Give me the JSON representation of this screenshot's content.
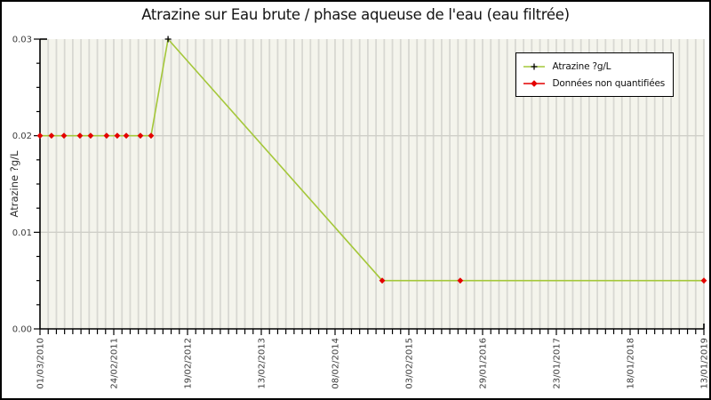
{
  "title": "Atrazine sur Eau brute / phase aqueuse de l'eau (eau filtrée)",
  "legend": {
    "items": [
      {
        "label": "Atrazine ?g/L",
        "marker": "black-plus-on-green-line"
      },
      {
        "label": "Données non quantifiées",
        "marker": "red-diamond-on-red-line"
      }
    ]
  },
  "colors": {
    "plot_bg": "#f4f4ec",
    "grid_vertical": "#d8d8d2",
    "grid_horizontal": "#cfcfc8",
    "axis": "#000000",
    "tick_label": "#3c3c3c",
    "series_line": "#a4c739",
    "non_quantified_marker": "#e40000",
    "quantified_marker": "#000000"
  },
  "chart_data": {
    "type": "line",
    "title": "Atrazine sur Eau brute / phase aqueuse de l'eau (eau filtrée)",
    "xlabel": "",
    "ylabel": "Atrazine ?g/L",
    "ylim": [
      0,
      0.03
    ],
    "y_major_step": 0.01,
    "y_minor_step": 0.0025,
    "y_tick_labels": [
      "0.00",
      "0.01",
      "0.02",
      "0.03"
    ],
    "x_tick_labels": [
      "01/03/2010",
      "24/02/2011",
      "19/02/2012",
      "13/02/2013",
      "08/02/2014",
      "03/02/2015",
      "29/01/2016",
      "23/01/2017",
      "18/01/2018",
      "13/01/2019"
    ],
    "x_tick_interval_days": 360,
    "x_minor_interval_days": 40,
    "x_total_days": 3240,
    "grid": "vertical-minor-and-horizontal-major",
    "legend_position": "top-right",
    "series": [
      {
        "name": "Atrazine ?g/L",
        "points": [
          {
            "day": 0,
            "value": 0.02,
            "quantified": false,
            "date_approx": "01/03/2010"
          },
          {
            "day": 56,
            "value": 0.02,
            "quantified": false,
            "date_approx": "26/04/2010"
          },
          {
            "day": 117,
            "value": 0.02,
            "quantified": false,
            "date_approx": "26/06/2010"
          },
          {
            "day": 195,
            "value": 0.02,
            "quantified": false,
            "date_approx": "12/09/2010"
          },
          {
            "day": 247,
            "value": 0.02,
            "quantified": false,
            "date_approx": "03/11/2010"
          },
          {
            "day": 325,
            "value": 0.02,
            "quantified": false,
            "date_approx": "20/01/2011"
          },
          {
            "day": 377,
            "value": 0.02,
            "quantified": false,
            "date_approx": "13/03/2011"
          },
          {
            "day": 421,
            "value": 0.02,
            "quantified": false,
            "date_approx": "26/04/2011"
          },
          {
            "day": 490,
            "value": 0.02,
            "quantified": false,
            "date_approx": "04/07/2011"
          },
          {
            "day": 542,
            "value": 0.02,
            "quantified": false,
            "date_approx": "25/08/2011"
          },
          {
            "day": 625,
            "value": 0.03,
            "quantified": true,
            "date_approx": "16/11/2011"
          },
          {
            "day": 1670,
            "value": 0.005,
            "quantified": false,
            "date_approx": "27/09/2014"
          },
          {
            "day": 2051,
            "value": 0.005,
            "quantified": false,
            "date_approx": "12/10/2015"
          },
          {
            "day": 3240,
            "value": 0.005,
            "quantified": false,
            "date_approx": "13/01/2019"
          }
        ]
      }
    ]
  }
}
